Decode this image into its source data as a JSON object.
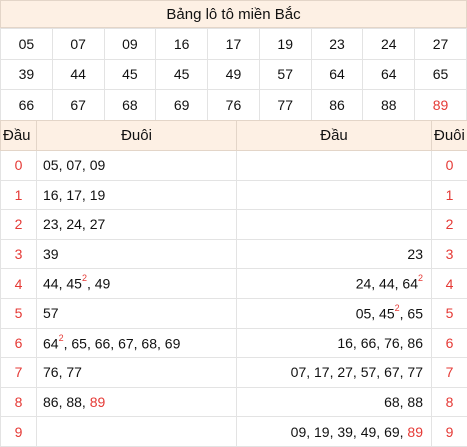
{
  "title": "Bảng lô tô miền Bắc",
  "numbers": [
    [
      "05",
      "07",
      "09",
      "16",
      "17",
      "19",
      "23",
      "24",
      "27"
    ],
    [
      "39",
      "44",
      "45",
      "45",
      "49",
      "57",
      "64",
      "64",
      "65"
    ],
    [
      "66",
      "67",
      "68",
      "69",
      "76",
      "77",
      "86",
      "88",
      "89"
    ]
  ],
  "highlight_color": "#e53935",
  "header": {
    "dau": "Đầu",
    "duoi": "Đuôi",
    "dau_right": "Đầu",
    "duoi_right": "Đuôi"
  },
  "rows": [
    {
      "head": "0",
      "left": [
        {
          "t": "05, 07, 09"
        }
      ],
      "right": [],
      "tail": "0"
    },
    {
      "head": "1",
      "left": [
        {
          "t": "16, 17, 19"
        }
      ],
      "right": [],
      "tail": "1"
    },
    {
      "head": "2",
      "left": [
        {
          "t": "23, 24, 27"
        }
      ],
      "right": [],
      "tail": "2"
    },
    {
      "head": "3",
      "left": [
        {
          "t": "39"
        }
      ],
      "right": [
        {
          "t": "23"
        }
      ],
      "tail": "3"
    },
    {
      "head": "4",
      "left": [
        {
          "t": "44, 45"
        },
        {
          "sup": "2"
        },
        {
          "t": ", 49"
        }
      ],
      "right": [
        {
          "t": "24, 44, 64"
        },
        {
          "sup": "2"
        }
      ],
      "tail": "4"
    },
    {
      "head": "5",
      "left": [
        {
          "t": "57"
        }
      ],
      "right": [
        {
          "t": "05, 45"
        },
        {
          "sup": "2"
        },
        {
          "t": ", 65"
        }
      ],
      "tail": "5"
    },
    {
      "head": "6",
      "left": [
        {
          "t": "64"
        },
        {
          "sup": "2"
        },
        {
          "t": ", 65, 66, 67, 68, 69"
        }
      ],
      "right": [
        {
          "t": "16, 66, 76, 86"
        }
      ],
      "tail": "6"
    },
    {
      "head": "7",
      "left": [
        {
          "t": "76, 77"
        }
      ],
      "right": [
        {
          "t": "07, 17, 27, 57, 67, 77"
        }
      ],
      "tail": "7"
    },
    {
      "head": "8",
      "left": [
        {
          "t": "86, 88, "
        },
        {
          "red": "89"
        }
      ],
      "right": [
        {
          "t": "68, 88"
        }
      ],
      "tail": "8"
    },
    {
      "head": "9",
      "left": [],
      "right": [
        {
          "t": "09, 19, 39, 49, 69, "
        },
        {
          "red": "89"
        }
      ],
      "tail": "9"
    }
  ]
}
